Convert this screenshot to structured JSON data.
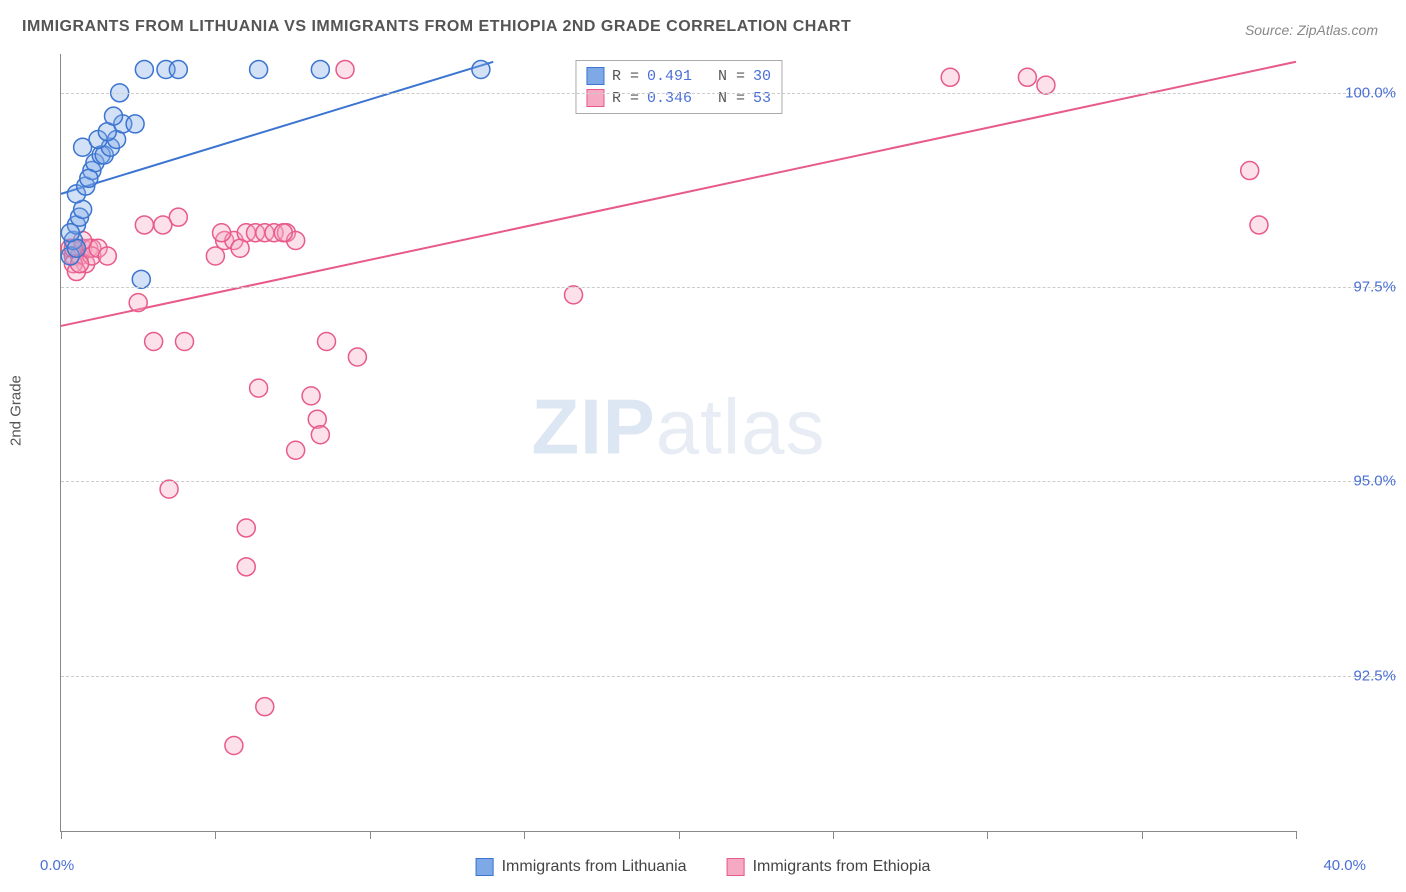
{
  "title": "IMMIGRANTS FROM LITHUANIA VS IMMIGRANTS FROM ETHIOPIA 2ND GRADE CORRELATION CHART",
  "source_prefix": "Source: ",
  "source_name": "ZipAtlas.com",
  "y_axis_label": "2nd Grade",
  "watermark": {
    "bold": "ZIP",
    "rest": "atlas"
  },
  "chart": {
    "type": "scatter",
    "xlim": [
      0,
      40
    ],
    "ylim": [
      90.5,
      100.5
    ],
    "x_ticks": [
      0,
      5,
      10,
      15,
      20,
      25,
      30,
      35,
      40
    ],
    "y_gridlines": [
      92.5,
      95.0,
      97.5,
      100.0
    ],
    "y_tick_labels": [
      "92.5%",
      "95.0%",
      "97.5%",
      "100.0%"
    ],
    "x_min_label": "0.0%",
    "x_max_label": "40.0%",
    "background_color": "#ffffff",
    "grid_color": "#cccccc",
    "axis_color": "#888888",
    "tick_label_color": "#4a6fd6",
    "marker_radius": 9,
    "marker_stroke_width": 1.5,
    "marker_fill_opacity": 0.35,
    "line_width": 2
  },
  "series": {
    "lithuania": {
      "label": "Immigrants from Lithuania",
      "color_stroke": "#3b74d1",
      "color_fill": "#7ea9e6",
      "R_label": "R = ",
      "R_value": "0.491",
      "N_label": "N = ",
      "N_value": "30",
      "regression": {
        "x1": 0,
        "y1": 98.7,
        "x2": 14,
        "y2": 100.4
      },
      "points": [
        [
          0.3,
          97.9
        ],
        [
          0.4,
          98.1
        ],
        [
          0.5,
          98.3
        ],
        [
          0.6,
          98.4
        ],
        [
          0.7,
          98.5
        ],
        [
          0.5,
          98.7
        ],
        [
          0.8,
          98.8
        ],
        [
          1.0,
          99.0
        ],
        [
          1.1,
          99.1
        ],
        [
          0.9,
          98.9
        ],
        [
          1.3,
          99.2
        ],
        [
          1.4,
          99.2
        ],
        [
          0.7,
          99.3
        ],
        [
          1.6,
          99.3
        ],
        [
          1.2,
          99.4
        ],
        [
          1.8,
          99.4
        ],
        [
          1.5,
          99.5
        ],
        [
          2.0,
          99.6
        ],
        [
          2.4,
          99.6
        ],
        [
          1.7,
          99.7
        ],
        [
          0.5,
          98.0
        ],
        [
          0.3,
          98.2
        ],
        [
          1.9,
          100.0
        ],
        [
          2.7,
          100.3
        ],
        [
          3.4,
          100.3
        ],
        [
          3.8,
          100.3
        ],
        [
          6.4,
          100.3
        ],
        [
          8.4,
          100.3
        ],
        [
          13.6,
          100.3
        ],
        [
          2.6,
          97.6
        ]
      ]
    },
    "ethiopia": {
      "label": "Immigrants from Ethiopia",
      "color_stroke": "#e85a8a",
      "color_fill": "#f5a9c2",
      "R_label": "R = ",
      "R_value": "0.346",
      "N_label": "N = ",
      "N_value": "53",
      "regression": {
        "x1": 0,
        "y1": 97.0,
        "x2": 40,
        "y2": 100.4
      },
      "points": [
        [
          0.3,
          98.0
        ],
        [
          0.5,
          98.0
        ],
        [
          0.7,
          98.0
        ],
        [
          0.4,
          97.9
        ],
        [
          0.6,
          97.9
        ],
        [
          0.8,
          97.8
        ],
        [
          0.9,
          98.0
        ],
        [
          1.0,
          98.0
        ],
        [
          1.0,
          97.9
        ],
        [
          0.4,
          97.8
        ],
        [
          2.7,
          98.3
        ],
        [
          3.3,
          98.3
        ],
        [
          3.8,
          98.4
        ],
        [
          5.0,
          97.9
        ],
        [
          5.3,
          98.1
        ],
        [
          5.6,
          98.1
        ],
        [
          6.0,
          98.2
        ],
        [
          6.3,
          98.2
        ],
        [
          6.6,
          98.2
        ],
        [
          6.9,
          98.2
        ],
        [
          7.3,
          98.2
        ],
        [
          7.6,
          98.1
        ],
        [
          7.2,
          98.2
        ],
        [
          2.5,
          97.3
        ],
        [
          4.0,
          96.8
        ],
        [
          3.0,
          96.8
        ],
        [
          8.6,
          96.8
        ],
        [
          6.4,
          96.2
        ],
        [
          9.6,
          96.6
        ],
        [
          8.1,
          96.1
        ],
        [
          8.3,
          95.8
        ],
        [
          8.4,
          95.6
        ],
        [
          7.6,
          95.4
        ],
        [
          6.0,
          94.4
        ],
        [
          6.0,
          93.9
        ],
        [
          5.6,
          91.6
        ],
        [
          6.6,
          92.1
        ],
        [
          3.5,
          94.9
        ],
        [
          16.6,
          97.4
        ],
        [
          9.2,
          100.3
        ],
        [
          28.8,
          100.2
        ],
        [
          31.3,
          100.2
        ],
        [
          31.9,
          100.1
        ],
        [
          38.5,
          99.0
        ],
        [
          38.8,
          98.3
        ],
        [
          1.2,
          98.0
        ],
        [
          1.5,
          97.9
        ],
        [
          0.5,
          97.7
        ],
        [
          0.7,
          98.1
        ],
        [
          0.4,
          98.0
        ],
        [
          0.6,
          97.8
        ],
        [
          5.8,
          98.0
        ],
        [
          5.2,
          98.2
        ]
      ]
    }
  }
}
